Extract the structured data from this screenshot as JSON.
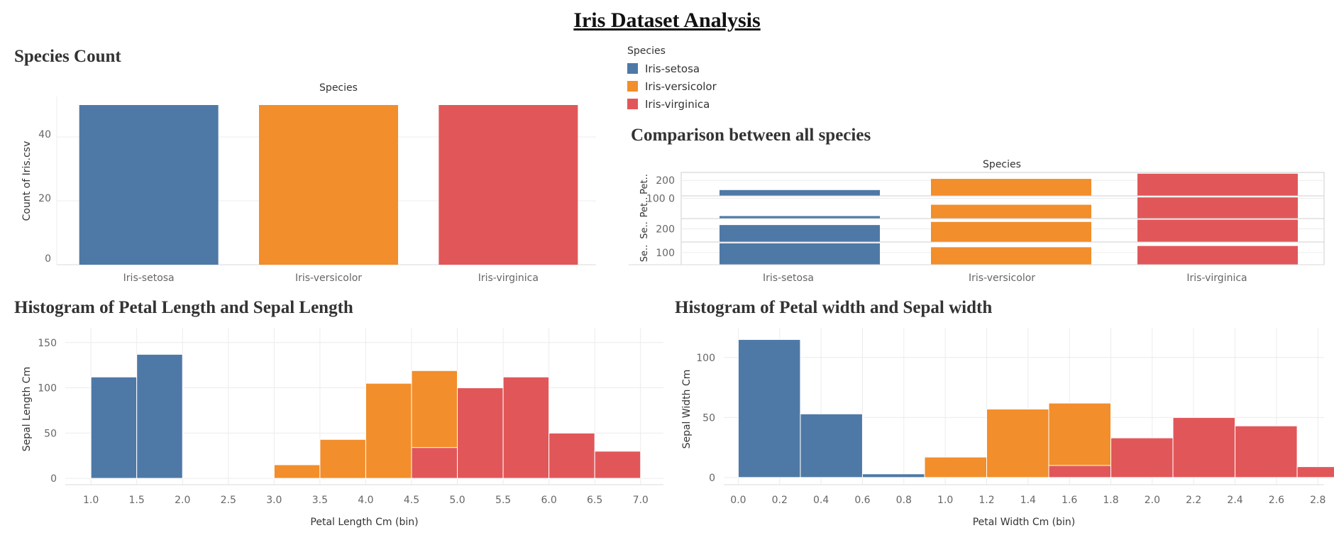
{
  "page_title": "Iris Dataset Analysis",
  "colors": {
    "setosa": "#4e79a7",
    "versicolor": "#f28e2b",
    "virginica": "#e15759",
    "grid": "#ececec",
    "axis": "#d9d9d9"
  },
  "legend": {
    "title": "Species",
    "items": [
      {
        "label": "Iris-setosa",
        "color": "#4e79a7"
      },
      {
        "label": "Iris-versicolor",
        "color": "#f28e2b"
      },
      {
        "label": "Iris-virginica",
        "color": "#e15759"
      }
    ]
  },
  "sheets": {
    "count": "Species Count",
    "comparison": "Comparison between all species",
    "hist_length": "Histogram of Petal Length and Sepal Length",
    "hist_width": "Histogram of Petal width and Sepal width"
  },
  "chart_data": [
    {
      "id": "species-count",
      "type": "bar",
      "title": "Species Count",
      "header": "Species",
      "ylabel": "Count of Iris.csv",
      "categories": [
        "Iris-setosa",
        "Iris-versicolor",
        "Iris-virginica"
      ],
      "values": [
        50,
        50,
        50
      ],
      "ylim": [
        0,
        50
      ],
      "yticks": [
        0,
        20,
        40
      ]
    },
    {
      "id": "species-comparison",
      "type": "bar",
      "title": "Comparison between all species",
      "header": "Species",
      "categories": [
        "Iris-setosa",
        "Iris-versicolor",
        "Iris-virginica"
      ],
      "rows": [
        {
          "label": "Pet..",
          "tick": 200,
          "ylim": [
            0,
            285
          ],
          "values": [
            73,
            213,
            278
          ]
        },
        {
          "label": "Pet..",
          "tick": "100 0",
          "ylim": [
            0,
            105
          ],
          "values": [
            12,
            66,
            101
          ]
        },
        {
          "label": "Se..",
          "tick": 200,
          "ylim": [
            0,
            335
          ],
          "values": [
            250,
            296,
            329
          ]
        },
        {
          "label": "Se..",
          "tick": 100,
          "ylim": [
            0,
            175
          ],
          "values": [
            170,
            139,
            149
          ]
        }
      ]
    },
    {
      "id": "hist-length",
      "type": "bar",
      "title": "Histogram of Petal Length and Sepal Length",
      "xlabel": "Petal Length Cm (bin)",
      "ylabel": "Sepal Length Cm",
      "xticks": [
        1.0,
        1.5,
        2.0,
        2.5,
        3.0,
        3.5,
        4.0,
        4.5,
        5.0,
        5.5,
        6.0,
        6.5,
        7.0
      ],
      "xlim": [
        0.72,
        7.25
      ],
      "yticks": [
        0,
        50,
        100,
        150
      ],
      "ylim": [
        -7,
        160
      ],
      "bin_width": 0.5,
      "series": [
        {
          "name": "Iris-setosa",
          "bins": [
            [
              1.0,
              112
            ],
            [
              1.5,
              137
            ]
          ]
        },
        {
          "name": "Iris-versicolor",
          "bins": [
            [
              3.0,
              15
            ],
            [
              3.5,
              43
            ],
            [
              4.0,
              105
            ],
            [
              4.5,
              119
            ],
            [
              5.0,
              11
            ]
          ]
        },
        {
          "name": "Iris-virginica",
          "bins": [
            [
              4.5,
              34
            ],
            [
              5.0,
              100
            ],
            [
              5.5,
              112
            ],
            [
              6.0,
              50
            ],
            [
              6.5,
              30
            ]
          ]
        }
      ]
    },
    {
      "id": "hist-width",
      "type": "bar",
      "title": "Histogram of Petal width and Sepal width",
      "xlabel": "Petal Width Cm (bin)",
      "ylabel": "Sepal Width Cm",
      "xticks": [
        0.0,
        0.2,
        0.4,
        0.6,
        0.8,
        1.0,
        1.2,
        1.4,
        1.6,
        1.8,
        2.0,
        2.2,
        2.4,
        2.6,
        2.8
      ],
      "xlim": [
        -0.07,
        2.83
      ],
      "yticks": [
        0,
        50,
        100
      ],
      "ylim": [
        -6,
        120
      ],
      "bin_width": 0.3,
      "series": [
        {
          "name": "Iris-setosa",
          "bins": [
            [
              0.0,
              115
            ],
            [
              0.3,
              53
            ],
            [
              0.6,
              3
            ]
          ]
        },
        {
          "name": "Iris-versicolor",
          "bins": [
            [
              0.9,
              17
            ],
            [
              1.2,
              57
            ],
            [
              1.5,
              62
            ],
            [
              1.8,
              6
            ]
          ]
        },
        {
          "name": "Iris-virginica",
          "bins": [
            [
              1.5,
              10
            ],
            [
              1.8,
              33
            ],
            [
              2.1,
              50
            ],
            [
              2.4,
              43
            ],
            [
              2.7,
              9
            ]
          ]
        }
      ]
    }
  ]
}
